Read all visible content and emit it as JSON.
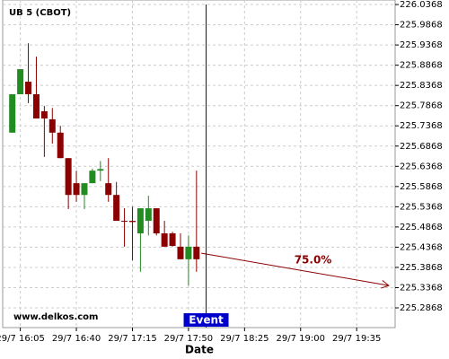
{
  "chart_data": {
    "type": "candlestick",
    "title": "UB 5 (CBOT)",
    "watermark": "www.delkos.com",
    "x_label": "Date",
    "up_color": "#228b22",
    "down_color": "#8b0000",
    "grid": true,
    "x": [
      "29/7 16:00",
      "29/7 16:05",
      "29/7 16:10",
      "29/7 16:15",
      "29/7 16:20",
      "29/7 16:25",
      "29/7 16:30",
      "29/7 16:35",
      "29/7 16:40",
      "29/7 16:45",
      "29/7 16:50",
      "29/7 16:55",
      "29/7 17:00",
      "29/7 17:05",
      "29/7 17:10",
      "29/7 17:15",
      "29/7 17:20",
      "29/7 17:25",
      "29/7 17:30",
      "29/7 17:35",
      "29/7 17:40",
      "29/7 17:45",
      "29/7 17:50",
      "29/7 17:55"
    ],
    "open": [
      225.72,
      225.815,
      225.846,
      225.815,
      225.773,
      225.753,
      225.72,
      225.657,
      225.595,
      225.566,
      225.595,
      225.626,
      225.595,
      225.566,
      225.502,
      225.502,
      225.471,
      225.502,
      225.533,
      225.471,
      225.471,
      225.438,
      225.407,
      225.438
    ],
    "high": [
      225.815,
      225.877,
      225.941,
      225.908,
      225.786,
      225.781,
      225.737,
      225.657,
      225.626,
      225.595,
      225.631,
      225.65,
      225.657,
      225.598,
      225.533,
      225.537,
      225.533,
      225.564,
      225.533,
      225.502,
      225.475,
      225.471,
      225.466,
      225.626
    ],
    "low": [
      225.72,
      225.815,
      225.793,
      225.755,
      225.66,
      225.693,
      225.657,
      225.531,
      225.549,
      225.531,
      225.595,
      225.6,
      225.549,
      225.502,
      225.438,
      225.404,
      225.376,
      225.466,
      225.466,
      225.438,
      225.438,
      225.407,
      225.342,
      225.376
    ],
    "close": [
      225.815,
      225.877,
      225.815,
      225.755,
      225.755,
      225.72,
      225.657,
      225.566,
      225.566,
      225.595,
      225.626,
      225.63,
      225.566,
      225.502,
      225.5,
      225.499,
      225.533,
      225.533,
      225.471,
      225.438,
      225.44,
      225.407,
      225.438,
      225.407
    ],
    "xlim": [
      "29/7 15:54",
      "29/7 19:59"
    ],
    "xticks": [
      "29/7 16:05",
      "29/7 16:40",
      "29/7 17:15",
      "29/7 17:50",
      "29/7 18:25",
      "29/7 19:00",
      "29/7 19:35"
    ],
    "ylim": [
      225.238,
      226.048
    ],
    "yticks": [
      226.0368,
      225.9868,
      225.9368,
      225.8868,
      225.8368,
      225.7868,
      225.7368,
      225.6868,
      225.6368,
      225.5868,
      225.5368,
      225.4868,
      225.4368,
      225.3868,
      225.3368,
      225.2868
    ],
    "event": {
      "label": "Event",
      "x": "29/7 18:01",
      "color": "#0000cc"
    },
    "projection": {
      "label": "75.0%",
      "color": "#8b0000",
      "x_start": "29/7 17:58",
      "y_start": 225.422,
      "x_end": "29/7 19:55",
      "y_end": 225.342
    }
  }
}
